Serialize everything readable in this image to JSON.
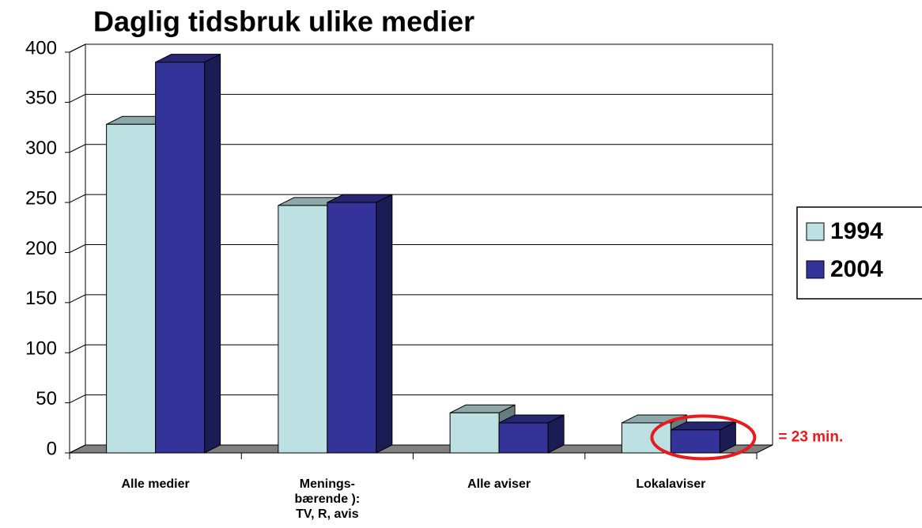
{
  "chart_data": {
    "type": "bar3d",
    "title": "Daglig tidsbruk ulike medier",
    "categories": [
      "Alle medier",
      "Menings-\nbærende ):\nTV, R, avis",
      "Alle aviser",
      "Lokalaviser"
    ],
    "series": [
      {
        "name": "1994",
        "color": "#bde0e3",
        "values": [
          328,
          247,
          40,
          30
        ]
      },
      {
        "name": "2004",
        "color": "#333399",
        "values": [
          390,
          250,
          30,
          23
        ]
      }
    ],
    "ylim": [
      0,
      400
    ],
    "yticks": [
      0,
      50,
      100,
      150,
      200,
      250,
      300,
      350,
      400
    ],
    "grid": true,
    "legend": "right",
    "annotation": "= 23 min."
  }
}
